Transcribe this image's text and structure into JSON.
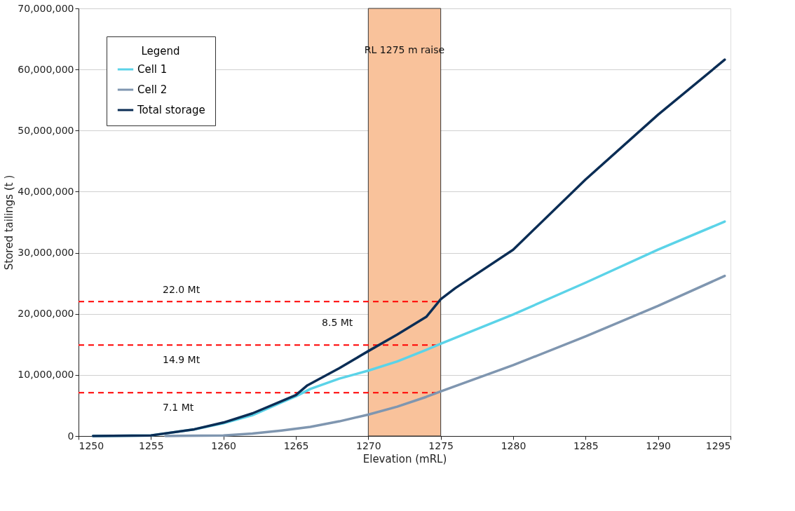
{
  "chart_data": {
    "type": "line",
    "xlabel": "Elevation (mRL)",
    "ylabel": "Stored tailings (t )",
    "legend_title": "Legend",
    "legend": "top left",
    "grid": "y",
    "line_style": "solid",
    "marker": "none",
    "xlim": [
      1250,
      1295
    ],
    "xticks": [
      1250,
      1255,
      1260,
      1265,
      1270,
      1275,
      1280,
      1285,
      1290,
      1295
    ],
    "ylim": [
      0,
      70000000
    ],
    "yticks": [
      {
        "value": 0,
        "label": "0"
      },
      {
        "value": 10000000,
        "label": "10,000,000"
      },
      {
        "value": 20000000,
        "label": "20,000,000"
      },
      {
        "value": 30000000,
        "label": "30,000,000"
      },
      {
        "value": 40000000,
        "label": "40,000,000"
      },
      {
        "value": 50000000,
        "label": "50,000,000"
      },
      {
        "value": 60000000,
        "label": "60,000,000"
      },
      {
        "value": 70000000,
        "label": "70,000,000"
      }
    ],
    "series": [
      {
        "name": "Cell 1",
        "color": "#5bd3e8",
        "x": [
          1251,
          1255,
          1258,
          1260,
          1262,
          1264,
          1265,
          1266,
          1268,
          1270,
          1272,
          1274,
          1275,
          1280,
          1285,
          1290,
          1294.6
        ],
        "values": [
          0,
          100000,
          1100000,
          2100000,
          3400000,
          5500000,
          6500000,
          7700000,
          9400000,
          10700000,
          12200000,
          14100000,
          15100000,
          19900000,
          25100000,
          30500000,
          35100000
        ]
      },
      {
        "name": "Cell 2",
        "color": "#7f96b0",
        "x": [
          1256,
          1260,
          1262,
          1264,
          1266,
          1268,
          1270,
          1272,
          1274,
          1275,
          1280,
          1285,
          1290,
          1294.6
        ],
        "values": [
          0,
          100000,
          400000,
          900000,
          1500000,
          2400000,
          3500000,
          4800000,
          6400000,
          7300000,
          11600000,
          16300000,
          21300000,
          26200000
        ]
      },
      {
        "name": "Total storage",
        "color": "#0b2d55",
        "x": [
          1251,
          1255,
          1258,
          1260,
          1262,
          1264,
          1265,
          1265.8,
          1268,
          1270,
          1272,
          1274,
          1275,
          1276,
          1280,
          1285,
          1290,
          1294.6
        ],
        "values": [
          0,
          100000,
          1100000,
          2200000,
          3700000,
          5700000,
          6700000,
          8300000,
          11100000,
          13900000,
          16600000,
          19500000,
          22400000,
          24200000,
          30500000,
          42000000,
          52600000,
          61600000
        ]
      }
    ],
    "bands": [
      {
        "axis": "x",
        "from": 1270,
        "to": 1275,
        "label": "RL 1275 m raise",
        "color": "#f9c29b"
      }
    ],
    "ref_lines": [
      {
        "axis": "y",
        "value": 22000000,
        "label": "22.0 Mt",
        "color": "#ff0000",
        "line_style": "dashed"
      },
      {
        "axis": "y",
        "value": 14900000,
        "label": "14.9 Mt",
        "color": "#ff0000",
        "line_style": "dashed"
      },
      {
        "axis": "y",
        "value": 7100000,
        "label": "7.1 Mt",
        "color": "#ff0000",
        "line_style": "dashed"
      }
    ],
    "annotations": [
      "8.5 Mt"
    ]
  }
}
